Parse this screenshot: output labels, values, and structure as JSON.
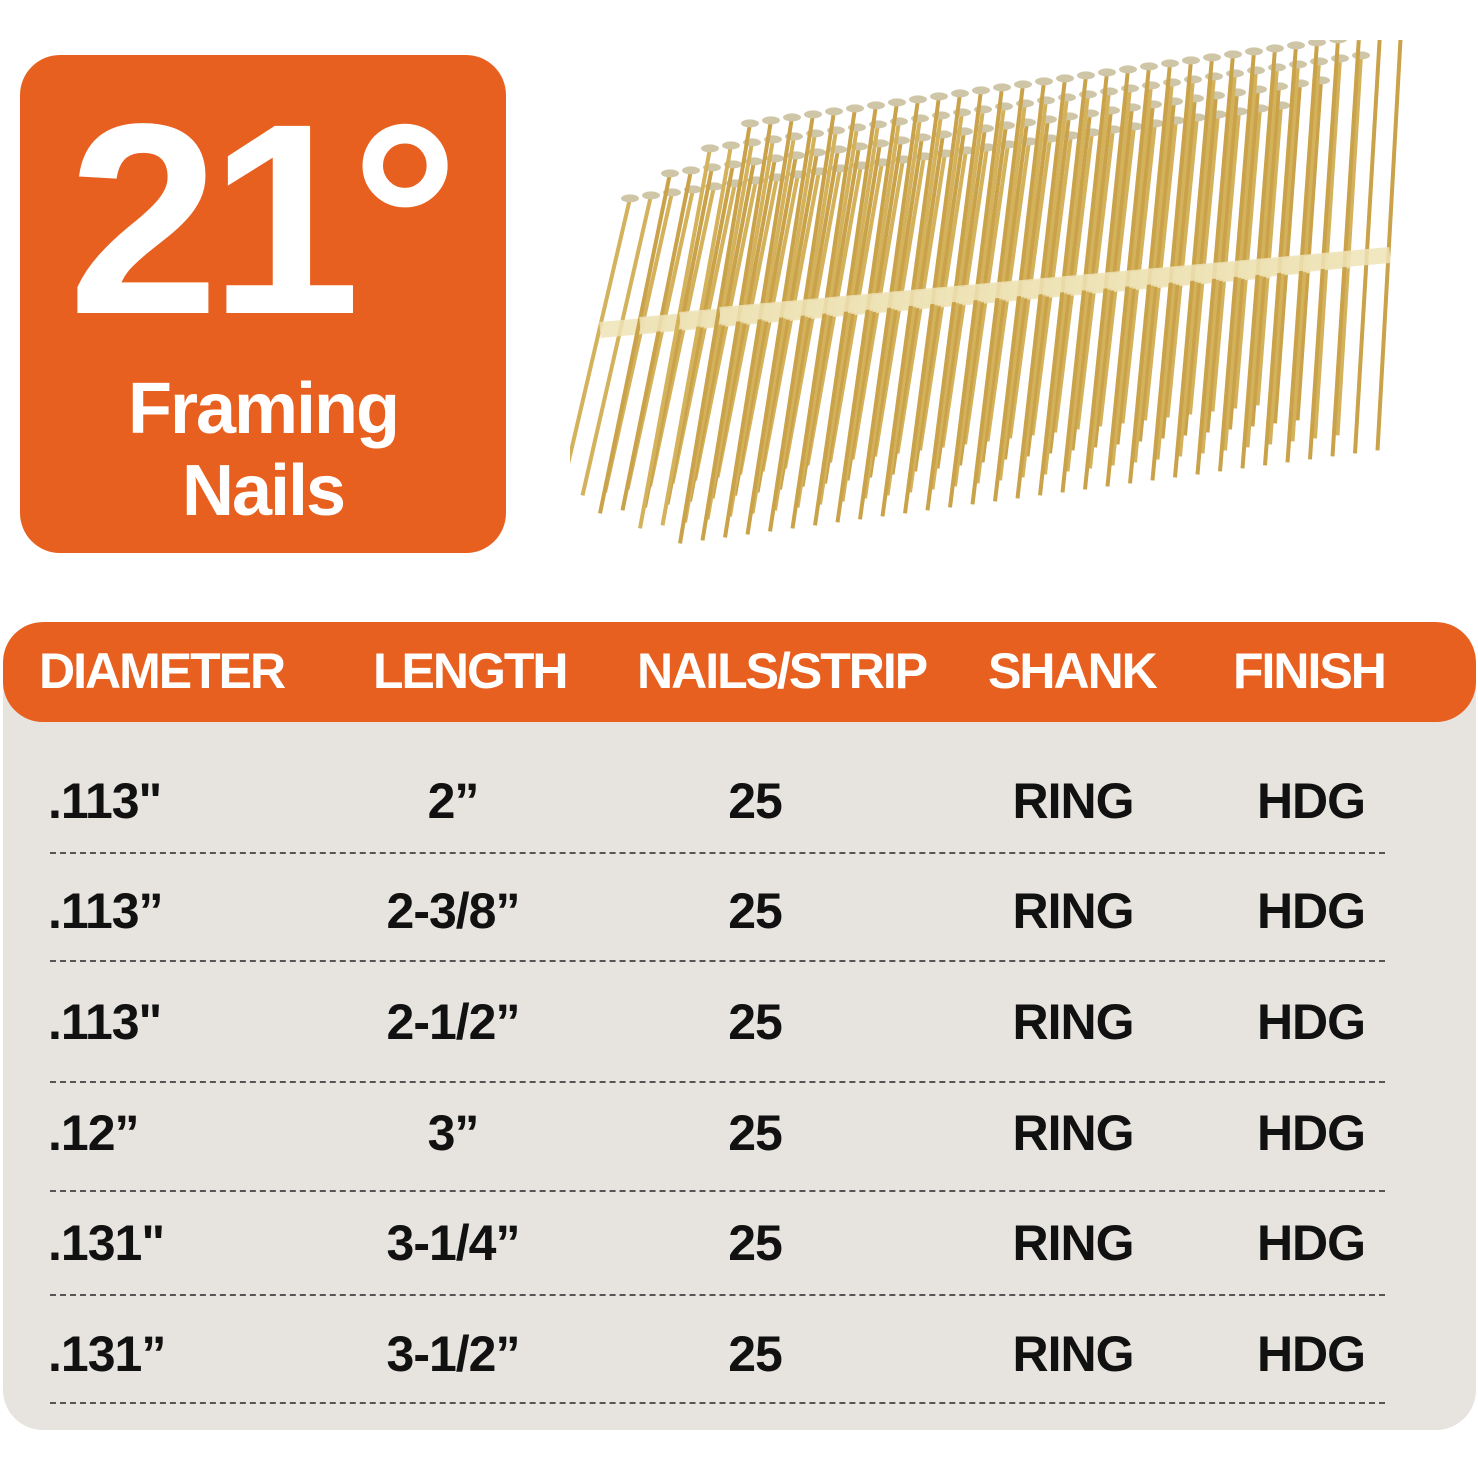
{
  "badge": {
    "angle": "21°",
    "line1": "Framing",
    "line2": "Nails"
  },
  "colors": {
    "accent": "#e8601f",
    "table_bg": "#e7e4df",
    "text": "#111111"
  },
  "image": {
    "subject": "nail-strips"
  },
  "table": {
    "headers": [
      "DIAMETER",
      "LENGTH",
      "NAILS/STRIP",
      "SHANK",
      "FINISH"
    ],
    "rows": [
      [
        ".113\"",
        "2”",
        "25",
        "RING",
        "HDG"
      ],
      [
        ".113”",
        "2-3/8”",
        "25",
        "RING",
        "HDG"
      ],
      [
        ".113\"",
        "2-1/2”",
        "25",
        "RING",
        "HDG"
      ],
      [
        ".12”",
        "3”",
        "25",
        "RING",
        "HDG"
      ],
      [
        ".131\"",
        "3-1/4”",
        "25",
        "RING",
        "HDG"
      ],
      [
        ".131”",
        "3-1/2”",
        "25",
        "RING",
        "HDG"
      ]
    ]
  }
}
